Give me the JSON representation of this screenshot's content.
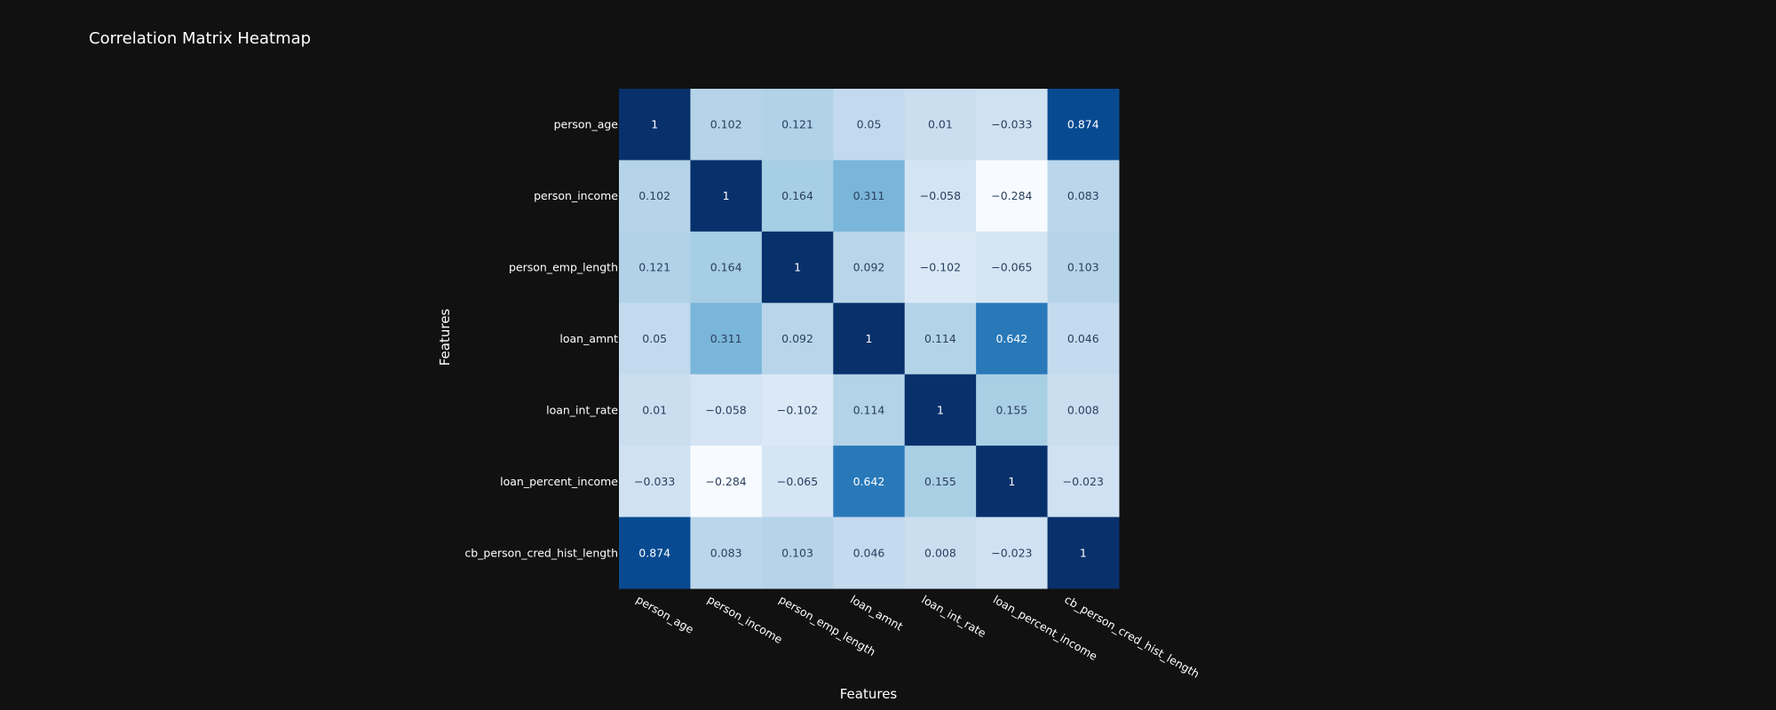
{
  "chart_data": {
    "type": "heatmap",
    "title": "Correlation Matrix Heatmap",
    "xlabel": "Features",
    "ylabel": "Features",
    "colorscale": "Blues",
    "zlim": [
      -0.284,
      1
    ],
    "x": [
      "person_age",
      "person_income",
      "person_emp_length",
      "loan_amnt",
      "loan_int_rate",
      "loan_percent_income",
      "cb_person_cred_hist_length"
    ],
    "y": [
      "person_age",
      "person_income",
      "person_emp_length",
      "loan_amnt",
      "loan_int_rate",
      "loan_percent_income",
      "cb_person_cred_hist_length"
    ],
    "z": [
      [
        1,
        0.102,
        0.121,
        0.05,
        0.01,
        -0.033,
        0.874
      ],
      [
        0.102,
        1,
        0.164,
        0.311,
        -0.058,
        -0.284,
        0.083
      ],
      [
        0.121,
        0.164,
        1,
        0.092,
        -0.102,
        -0.065,
        0.103
      ],
      [
        0.05,
        0.311,
        0.092,
        1,
        0.114,
        0.642,
        0.046
      ],
      [
        0.01,
        -0.058,
        -0.102,
        0.114,
        1,
        0.155,
        0.008
      ],
      [
        -0.033,
        -0.284,
        -0.065,
        0.642,
        0.155,
        1,
        -0.023
      ],
      [
        0.874,
        0.083,
        0.103,
        0.046,
        0.008,
        -0.023,
        1
      ]
    ],
    "text": [
      [
        "1",
        "0.102",
        "0.121",
        "0.05",
        "0.01",
        "−0.033",
        "0.874"
      ],
      [
        "0.102",
        "1",
        "0.164",
        "0.311",
        "−0.058",
        "−0.284",
        "0.083"
      ],
      [
        "0.121",
        "0.164",
        "1",
        "0.092",
        "−0.102",
        "−0.065",
        "0.103"
      ],
      [
        "0.05",
        "0.311",
        "0.092",
        "1",
        "0.114",
        "0.642",
        "0.046"
      ],
      [
        "0.01",
        "−0.058",
        "−0.102",
        "0.114",
        "1",
        "0.155",
        "0.008"
      ],
      [
        "−0.033",
        "−0.284",
        "−0.065",
        "0.642",
        "0.155",
        "1",
        "−0.023"
      ],
      [
        "0.874",
        "0.083",
        "0.103",
        "0.046",
        "0.008",
        "−0.023",
        "1"
      ]
    ],
    "grid": false,
    "legend": "none",
    "colors": {
      "background": "#111111",
      "text": "#ffffff",
      "cell_text_dark": "#2a3f5f",
      "cell_text_light": "#ffffff"
    }
  }
}
